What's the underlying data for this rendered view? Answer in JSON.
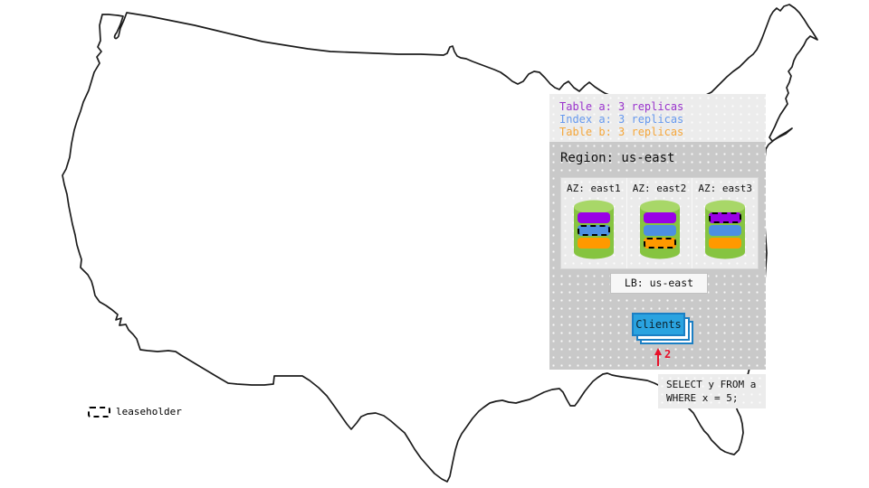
{
  "panel": {
    "replica_legend": [
      {
        "label": "Table a: 3 replicas",
        "color": "#9933cc"
      },
      {
        "label": "Index a: 3 replicas",
        "color": "#6699ee"
      },
      {
        "label": "Table b: 3 replicas",
        "color": "#f5a63a"
      }
    ],
    "region_title": "Region: us-east",
    "azs": [
      {
        "label": "AZ: east1",
        "replicas": [
          {
            "name": "table-a",
            "leaseholder": false
          },
          {
            "name": "index-a",
            "leaseholder": true
          },
          {
            "name": "table-b",
            "leaseholder": false
          }
        ]
      },
      {
        "label": "AZ: east2",
        "replicas": [
          {
            "name": "table-a",
            "leaseholder": false
          },
          {
            "name": "index-a",
            "leaseholder": false
          },
          {
            "name": "table-b",
            "leaseholder": true
          }
        ]
      },
      {
        "label": "AZ: east3",
        "replicas": [
          {
            "name": "table-a",
            "leaseholder": true
          },
          {
            "name": "index-a",
            "leaseholder": false
          },
          {
            "name": "table-b",
            "leaseholder": false
          }
        ]
      }
    ],
    "lb_label": "LB: us-east",
    "clients_label": "Clients",
    "arrow_label": "2"
  },
  "query": {
    "lines": [
      "SELECT y FROM a",
      "WHERE x = 5;"
    ]
  },
  "map_key": {
    "leaseholder_label": "leaseholder"
  },
  "colors": {
    "table_a_bar": "#9900e6",
    "index_a_bar": "#4d8fe2",
    "table_b_bar": "#ff9900",
    "arrow": "#e8112a",
    "clients_fill": "#2aa3e0",
    "clients_border": "#1b7fc4",
    "cylinder_body": "#86c440",
    "cylinder_top": "#a8d768"
  }
}
